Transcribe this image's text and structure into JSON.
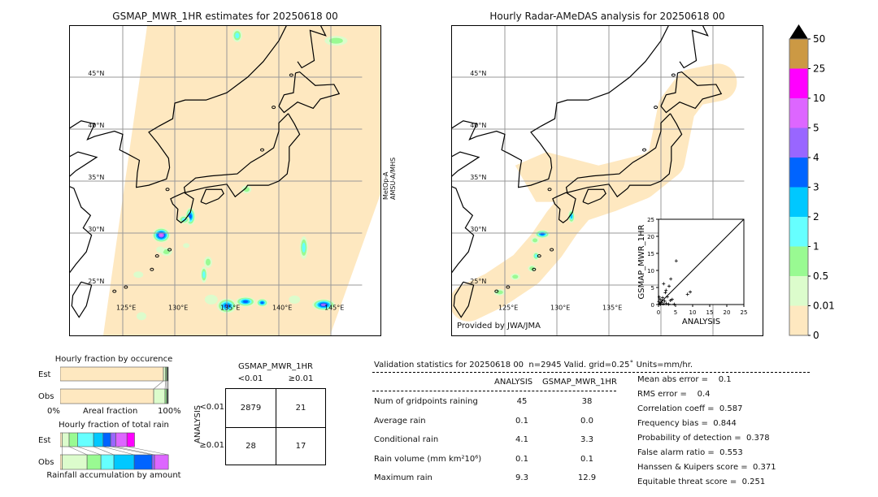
{
  "left_map": {
    "title": "GSMAP_MWR_1HR estimates for 20250618 00",
    "satellite_label_line1": "MetOp-A",
    "satellite_label_line2": "AMSU-A/MHS",
    "lat_labels": [
      "45°N",
      "40°N",
      "35°N",
      "30°N",
      "25°N"
    ],
    "lon_labels": [
      "125°E",
      "130°E",
      "135°E",
      "140°E",
      "145°E"
    ]
  },
  "right_map": {
    "title": "Hourly Radar-AMeDAS analysis for 20250618 00",
    "lat_labels": [
      "45°N",
      "40°N",
      "35°N",
      "30°N",
      "25°N"
    ],
    "lon_labels": [
      "125°E",
      "130°E",
      "135°E"
    ],
    "provider": "Provided by JWA/JMA"
  },
  "scatter": {
    "xlabel": "ANALYSIS",
    "ylabel": "GSMAP_MWR_1HR",
    "ticks": [
      "0",
      "5",
      "10",
      "15",
      "20",
      "25"
    ],
    "range": [
      0,
      25
    ],
    "points": [
      [
        5.2,
        12.8
      ],
      [
        1.5,
        6.1
      ],
      [
        3.6,
        7.5
      ],
      [
        3.1,
        5.4
      ],
      [
        2.2,
        4.2
      ],
      [
        8.5,
        3.0
      ],
      [
        9.3,
        3.7
      ],
      [
        2.0,
        3.5
      ],
      [
        1.2,
        2.0
      ],
      [
        0.5,
        1.5
      ],
      [
        0.8,
        0.6
      ],
      [
        0.3,
        0.2
      ],
      [
        1.8,
        1.0
      ],
      [
        2.6,
        2.3
      ],
      [
        3.5,
        1.2
      ],
      [
        4.6,
        0.1
      ],
      [
        2.3,
        0.3
      ],
      [
        0.2,
        2.2
      ],
      [
        1.0,
        1.1
      ],
      [
        0.6,
        0.1
      ],
      [
        0.1,
        0.9
      ],
      [
        1.4,
        0.2
      ],
      [
        3.0,
        0.1
      ],
      [
        4.0,
        1.5
      ]
    ]
  },
  "colorbar": {
    "ticks": [
      "0",
      "0.01",
      "0.5",
      "1",
      "2",
      "3",
      "4",
      "5",
      "10",
      "25",
      "50"
    ],
    "colors": [
      "#fee8c0",
      "#dcfccc",
      "#99fa92",
      "#66ffff",
      "#00c8ff",
      "#0064ff",
      "#9966ff",
      "#dd66ff",
      "#ff00ff",
      "#cc9944"
    ],
    "extend_color": "#000000"
  },
  "occurrence": {
    "title": "Hourly fraction by occurence",
    "est_label": "Est",
    "obs_label": "Obs",
    "xlabel": "Areal fraction",
    "x_min": "0%",
    "x_max": "100%",
    "est": [
      0.955,
      0.02,
      0.01,
      0.008,
      0.007
    ],
    "obs": [
      0.865,
      0.105,
      0.015,
      0.008,
      0.007
    ],
    "colors": [
      "#fee8c0",
      "#dcfccc",
      "#99fa92",
      "#555555",
      "#113322"
    ]
  },
  "total_rain": {
    "title": "Hourly fraction of total rain",
    "est_label": "Est",
    "obs_label": "Obs",
    "xlabel": "Rainfall accumulation by amount",
    "est": [
      0.018,
      0.065,
      0.078,
      0.148,
      0.088,
      0.07,
      0.048,
      0.103,
      0.07
    ],
    "obs": [
      0.018,
      0.231,
      0.128,
      0.12,
      0.188,
      0.165,
      0.023,
      0.128
    ],
    "colors": [
      "#fee8c0",
      "#dcfccc",
      "#99fa92",
      "#66ffff",
      "#00c8ff",
      "#0064ff",
      "#9966ff",
      "#dd66ff",
      "#ff00ff"
    ]
  },
  "contingency": {
    "col_title": "GSMAP_MWR_1HR",
    "col_labels": [
      "<0.01",
      "≥0.01"
    ],
    "row_title": "ANALYSIS",
    "row_labels": [
      "<0.01",
      "≥0.01"
    ],
    "cells": [
      [
        "2879",
        "21"
      ],
      [
        "28",
        "17"
      ]
    ]
  },
  "stats": {
    "header": "Validation statistics for 20250618 00  n=2945 Valid. grid=0.25˚ Units=mm/hr.",
    "col_analysis": "ANALYSIS",
    "col_gsmap": "GSMAP_MWR_1HR",
    "rows": [
      {
        "label": "Num of gridpoints raining",
        "analysis": "45",
        "gsmap": "38"
      },
      {
        "label": "Average rain",
        "analysis": "0.1",
        "gsmap": "0.0"
      },
      {
        "label": "Conditional rain",
        "analysis": "4.1",
        "gsmap": "3.3"
      },
      {
        "label": "Rain volume (mm km²10⁶)",
        "analysis": "0.1",
        "gsmap": "0.1"
      },
      {
        "label": "Maximum rain",
        "analysis": "9.3",
        "gsmap": "12.9"
      }
    ],
    "scores": [
      "Mean abs error =    0.1",
      "RMS error =    0.4",
      "Correlation coeff =  0.587",
      "Frequency bias =  0.844",
      "Probability of detection =  0.378",
      "False alarm ratio =  0.553",
      "Hanssen & Kuipers score =  0.371",
      "Equitable threat score =  0.251"
    ]
  }
}
